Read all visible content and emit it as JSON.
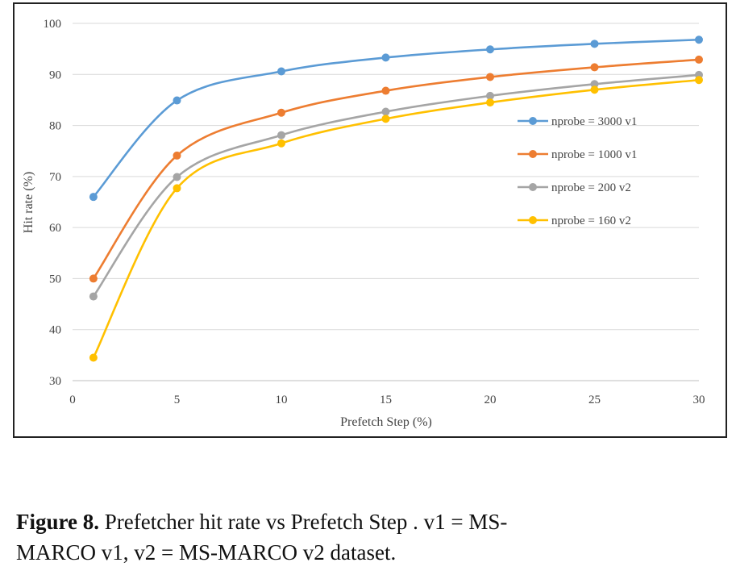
{
  "chart_data": {
    "type": "line",
    "title": "",
    "xlabel": "Prefetch Step (%)",
    "ylabel": "Hit rate (%)",
    "xlim": [
      0,
      30
    ],
    "ylim": [
      30,
      100
    ],
    "x_ticks": [
      "0",
      "5",
      "10",
      "15",
      "20",
      "25",
      "30"
    ],
    "y_ticks": [
      "30",
      "40",
      "50",
      "60",
      "70",
      "80",
      "90",
      "100"
    ],
    "x_tick_values": [
      0,
      5,
      10,
      15,
      20,
      25,
      30
    ],
    "y_tick_values": [
      30,
      40,
      50,
      60,
      70,
      80,
      90,
      100
    ],
    "grid": "horizontal",
    "legend_position": "right-inside",
    "x": [
      1,
      5,
      10,
      15,
      20,
      25,
      30
    ],
    "series": [
      {
        "name": "nprobe = 3000 v1",
        "color": "#5B9BD5",
        "values": [
          66,
          84.9,
          90.6,
          93.3,
          94.9,
          96,
          96.8
        ]
      },
      {
        "name": "nprobe = 1000 v1",
        "color": "#ED7D31",
        "values": [
          50,
          74.1,
          82.5,
          86.8,
          89.5,
          91.4,
          92.9
        ]
      },
      {
        "name": "nprobe = 200 v2",
        "color": "#A5A5A5",
        "values": [
          46.5,
          69.9,
          78.1,
          82.7,
          85.8,
          88.1,
          89.9
        ]
      },
      {
        "name": "nprobe = 160 v2",
        "color": "#FFC000",
        "values": [
          34.5,
          67.7,
          76.5,
          81.3,
          84.5,
          87,
          88.9
        ]
      }
    ]
  },
  "caption": {
    "label": "Figure 8.",
    "line1": " Prefetcher hit rate vs Prefetch Step . v1 = MS-",
    "line2": "MARCO v1, v2 = MS-MARCO v2 dataset."
  }
}
